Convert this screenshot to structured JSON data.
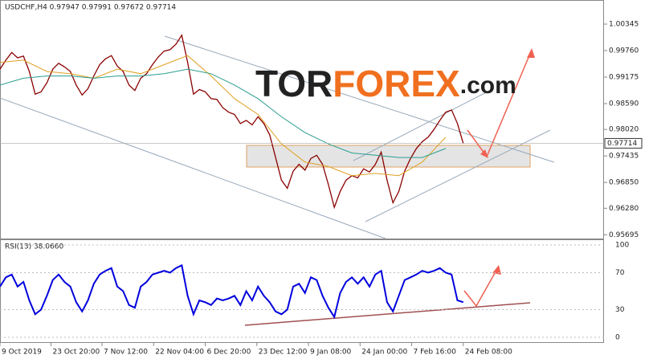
{
  "chart_data": {
    "type": "line",
    "title": "USDCHF,H4  0.97947 0.97991 0.97672 0.97714",
    "watermark": [
      "TOR",
      "FOREX",
      ".com"
    ],
    "last_price": 0.97714,
    "xlim": [
      0,
      103
    ],
    "xticks": [
      {
        "value": 0,
        "label": "9 Oct 2019"
      },
      {
        "value": 8.7,
        "label": "23 Oct 20:00"
      },
      {
        "value": 17.4,
        "label": "7 Nov 12:00"
      },
      {
        "value": 26.2,
        "label": "22 Nov 04:00"
      },
      {
        "value": 35,
        "label": "6 Dec 20:00"
      },
      {
        "value": 43.8,
        "label": "23 Dec 12:00"
      },
      {
        "value": 52.6,
        "label": "9 Jan 08:00"
      },
      {
        "value": 61.4,
        "label": "24 Jan 00:00"
      },
      {
        "value": 70.2,
        "label": "7 Feb 16:00"
      },
      {
        "value": 79,
        "label": "24 Feb 08:00"
      }
    ],
    "ylim": [
      0.95612,
      1.00877
    ],
    "yticks": [
      1.00345,
      {
        "value": 0.9976,
        "label": "0.99760"
      },
      0.99175,
      {
        "value": 0.9859,
        "label": "0.98590"
      },
      {
        "value": 0.9802,
        "label": "0.98020"
      },
      0.97435,
      {
        "value": 0.9685,
        "label": "0.96850"
      },
      {
        "value": 0.9628,
        "label": "0.96280"
      },
      0.95695
    ],
    "series": [
      {
        "name": "USDCHF",
        "color": "#8b0000",
        "x": [
          0,
          1,
          2,
          3,
          4,
          5,
          6,
          7,
          8,
          9,
          10,
          11,
          12,
          13,
          14,
          15,
          16,
          17,
          18,
          19,
          20,
          21,
          22,
          23,
          24,
          25,
          26,
          27,
          28,
          29,
          30,
          31,
          32,
          33,
          34,
          35,
          36,
          37,
          38,
          39,
          40,
          41,
          42,
          43,
          44,
          45,
          46,
          47,
          48,
          49,
          50,
          51,
          52,
          53,
          54,
          55,
          56,
          57,
          58,
          59,
          60,
          61,
          62,
          63,
          64,
          65,
          66,
          67,
          68,
          69,
          70,
          71,
          72,
          73,
          74,
          75,
          76,
          77,
          78,
          79
        ],
        "values": [
          0.9935,
          0.9955,
          0.9972,
          0.996,
          0.9964,
          0.993,
          0.988,
          0.9885,
          0.9905,
          0.9935,
          0.9948,
          0.994,
          0.993,
          0.99,
          0.9878,
          0.9892,
          0.992,
          0.9945,
          0.9958,
          0.9965,
          0.9942,
          0.993,
          0.99,
          0.9888,
          0.9915,
          0.9925,
          0.9945,
          0.9962,
          0.9975,
          0.9978,
          0.999,
          1.001,
          0.995,
          0.988,
          0.989,
          0.9885,
          0.987,
          0.9868,
          0.985,
          0.984,
          0.9835,
          0.9815,
          0.9822,
          0.9812,
          0.983,
          0.9815,
          0.979,
          0.974,
          0.969,
          0.9672,
          0.971,
          0.9725,
          0.9712,
          0.9738,
          0.9745,
          0.9725,
          0.968,
          0.963,
          0.9665,
          0.969,
          0.97,
          0.9695,
          0.9715,
          0.9708,
          0.9725,
          0.9752,
          0.969,
          0.964,
          0.9665,
          0.971,
          0.9738,
          0.976,
          0.9775,
          0.9785,
          0.9802,
          0.9822,
          0.984,
          0.9845,
          0.9815,
          0.9771
        ]
      },
      {
        "color": "#e0a020",
        "x": [
          0,
          4,
          8,
          12,
          16,
          20,
          24,
          28,
          32,
          36,
          40,
          44,
          48,
          52,
          56,
          60,
          64,
          68,
          72,
          76
        ],
        "values": [
          0.995,
          0.9955,
          0.993,
          0.9925,
          0.9915,
          0.9935,
          0.9925,
          0.9945,
          0.9965,
          0.992,
          0.987,
          0.9835,
          0.977,
          0.973,
          0.972,
          0.97,
          0.9705,
          0.97,
          0.973,
          0.9785
        ]
      },
      {
        "color": "#2a9d8f",
        "x": [
          0,
          4,
          8,
          12,
          16,
          20,
          24,
          28,
          32,
          36,
          40,
          44,
          48,
          52,
          56,
          60,
          64,
          68,
          72,
          76
        ],
        "values": [
          0.99,
          0.9915,
          0.992,
          0.992,
          0.9915,
          0.992,
          0.992,
          0.9925,
          0.9935,
          0.9925,
          0.99,
          0.987,
          0.983,
          0.9795,
          0.977,
          0.975,
          0.9745,
          0.974,
          0.974,
          0.976
        ]
      }
    ],
    "rsi": {
      "title": "RSI(13) 38.0660",
      "color": "#0000dd",
      "ylim": [
        0,
        100
      ],
      "yticks": [
        100,
        70,
        30,
        0
      ],
      "values": [
        55,
        65,
        68,
        55,
        60,
        40,
        25,
        30,
        45,
        62,
        68,
        60,
        55,
        38,
        28,
        40,
        58,
        68,
        72,
        75,
        55,
        50,
        35,
        32,
        55,
        60,
        68,
        70,
        72,
        70,
        75,
        78,
        45,
        25,
        40,
        38,
        35,
        42,
        40,
        42,
        45,
        35,
        50,
        40,
        55,
        45,
        38,
        28,
        25,
        30,
        55,
        58,
        48,
        65,
        62,
        45,
        32,
        22,
        48,
        60,
        65,
        58,
        65,
        55,
        68,
        72,
        38,
        28,
        45,
        62,
        65,
        68,
        72,
        70,
        72,
        75,
        70,
        68,
        40,
        38
      ]
    }
  }
}
